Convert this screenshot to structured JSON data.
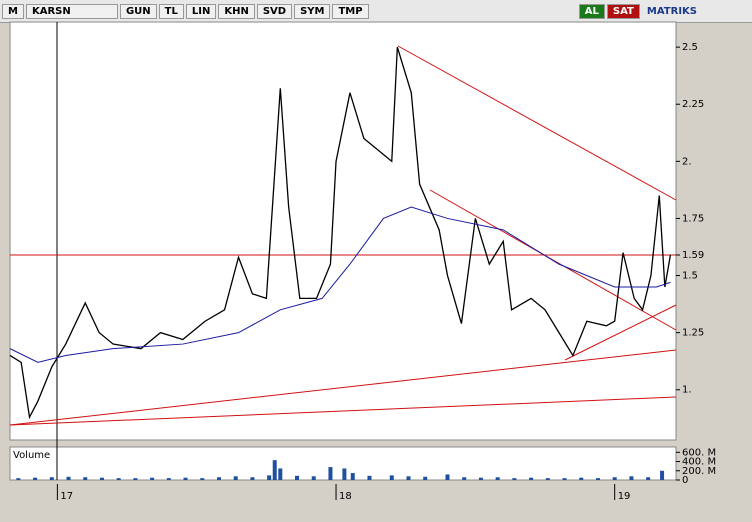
{
  "toolbar": {
    "logo": "M",
    "symbol": "KARSN",
    "items": [
      "GUN",
      "TL",
      "LIN",
      "KHN",
      "SVD",
      "SYM",
      "TMP"
    ],
    "buy": "AL",
    "sell": "SAT",
    "brand": "MATRIKS"
  },
  "chart_data": [
    {
      "type": "line",
      "xlim": [
        16.83,
        19.22
      ],
      "xticks": [
        17,
        18,
        19
      ],
      "ylim": [
        0.78,
        2.61
      ],
      "yticks": [
        {
          "value": 1,
          "label": "1."
        },
        1.25,
        1.5,
        1.59,
        1.75,
        {
          "value": 2,
          "label": "2."
        },
        2.25,
        2.5
      ],
      "series": [
        {
          "name": "KARSN",
          "color": "#000000",
          "x": [
            16.83,
            16.87,
            16.9,
            16.93,
            16.98,
            17.03,
            17.1,
            17.15,
            17.2,
            17.3,
            17.37,
            17.45,
            17.53,
            17.6,
            17.65,
            17.7,
            17.75,
            17.8,
            17.83,
            17.87,
            17.93,
            17.98,
            18.0,
            18.05,
            18.1,
            18.15,
            18.2,
            18.22,
            18.27,
            18.3,
            18.37,
            18.4,
            18.45,
            18.5,
            18.55,
            18.6,
            18.63,
            18.7,
            18.75,
            18.8,
            18.85,
            18.9,
            18.97,
            19.0,
            19.03,
            19.07,
            19.1,
            19.13,
            19.16,
            19.18,
            19.2
          ],
          "values": [
            1.15,
            1.12,
            0.88,
            0.95,
            1.1,
            1.2,
            1.38,
            1.25,
            1.2,
            1.18,
            1.25,
            1.22,
            1.3,
            1.35,
            1.58,
            1.42,
            1.4,
            2.32,
            1.8,
            1.4,
            1.4,
            1.55,
            2.0,
            2.3,
            2.1,
            2.05,
            2.0,
            2.5,
            2.3,
            1.9,
            1.7,
            1.5,
            1.29,
            1.75,
            1.55,
            1.65,
            1.35,
            1.4,
            1.35,
            1.25,
            1.15,
            1.3,
            1.28,
            1.3,
            1.6,
            1.4,
            1.35,
            1.5,
            1.85,
            1.45,
            1.59
          ]
        },
        {
          "name": "MA",
          "color": "#1a1aa0",
          "x": [
            16.83,
            16.93,
            17.03,
            17.2,
            17.45,
            17.65,
            17.8,
            17.95,
            18.05,
            18.17,
            18.27,
            18.4,
            18.6,
            18.8,
            19.0,
            19.15,
            19.2
          ],
          "values": [
            1.18,
            1.12,
            1.15,
            1.18,
            1.2,
            1.25,
            1.35,
            1.4,
            1.55,
            1.75,
            1.8,
            1.75,
            1.7,
            1.55,
            1.45,
            1.45,
            1.47
          ]
        }
      ]
    },
    {
      "type": "bar",
      "title": "Volume",
      "xlim": [
        16.83,
        19.22
      ],
      "ylim": [
        0,
        715000000
      ],
      "yticks": [
        0,
        {
          "value": 200000000,
          "label": "200. M"
        },
        {
          "value": 400000000,
          "label": "400. M"
        },
        {
          "value": 600000000,
          "label": "600. M"
        }
      ],
      "color": "#1f4f9f",
      "x": [
        16.86,
        16.92,
        16.98,
        17.04,
        17.1,
        17.16,
        17.22,
        17.28,
        17.34,
        17.4,
        17.46,
        17.52,
        17.58,
        17.64,
        17.7,
        17.76,
        17.78,
        17.8,
        17.86,
        17.92,
        17.98,
        18.03,
        18.06,
        18.12,
        18.2,
        18.26,
        18.32,
        18.4,
        18.46,
        18.52,
        18.58,
        18.64,
        18.7,
        18.76,
        18.82,
        18.88,
        18.94,
        19.0,
        19.06,
        19.12,
        19.17
      ],
      "values": [
        40000000,
        50000000,
        60000000,
        70000000,
        60000000,
        50000000,
        40000000,
        40000000,
        50000000,
        40000000,
        50000000,
        40000000,
        60000000,
        80000000,
        60000000,
        100000000,
        430000000,
        250000000,
        90000000,
        80000000,
        280000000,
        250000000,
        150000000,
        90000000,
        100000000,
        80000000,
        70000000,
        120000000,
        60000000,
        50000000,
        60000000,
        40000000,
        50000000,
        40000000,
        40000000,
        50000000,
        40000000,
        60000000,
        80000000,
        60000000,
        200000000
      ]
    }
  ]
}
